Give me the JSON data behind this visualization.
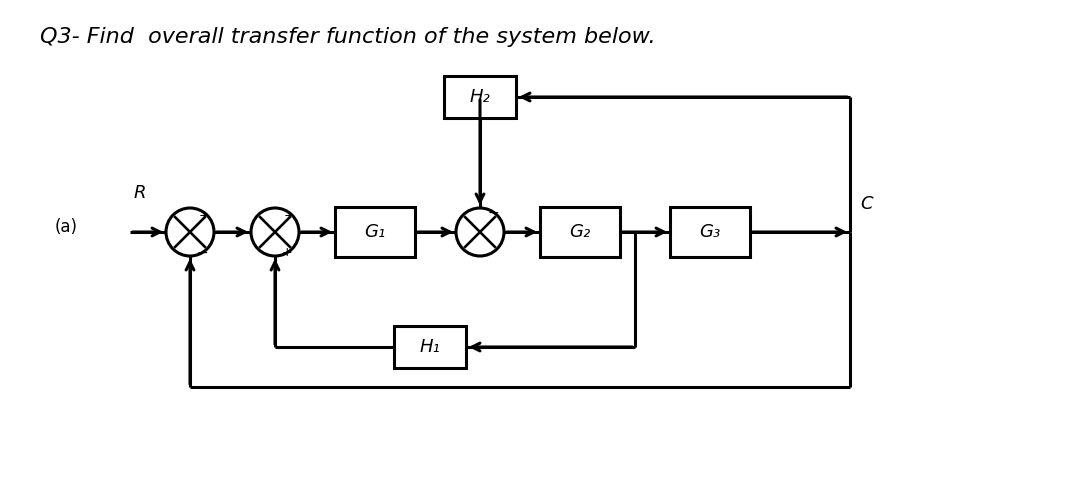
{
  "title": "Q3- Find  overall transfer function of the system below.",
  "label_a": "(a)",
  "label_R": "R",
  "label_C": "C",
  "block_G1": "G₁",
  "block_G2": "G₂",
  "block_G3": "G₃",
  "block_H1": "H₁",
  "block_H2": "H₂",
  "bg_color": "#ffffff",
  "line_color": "#000000",
  "lw": 2.2,
  "title_fontsize": 16,
  "label_fontsize": 13,
  "sign_fontsize": 9
}
